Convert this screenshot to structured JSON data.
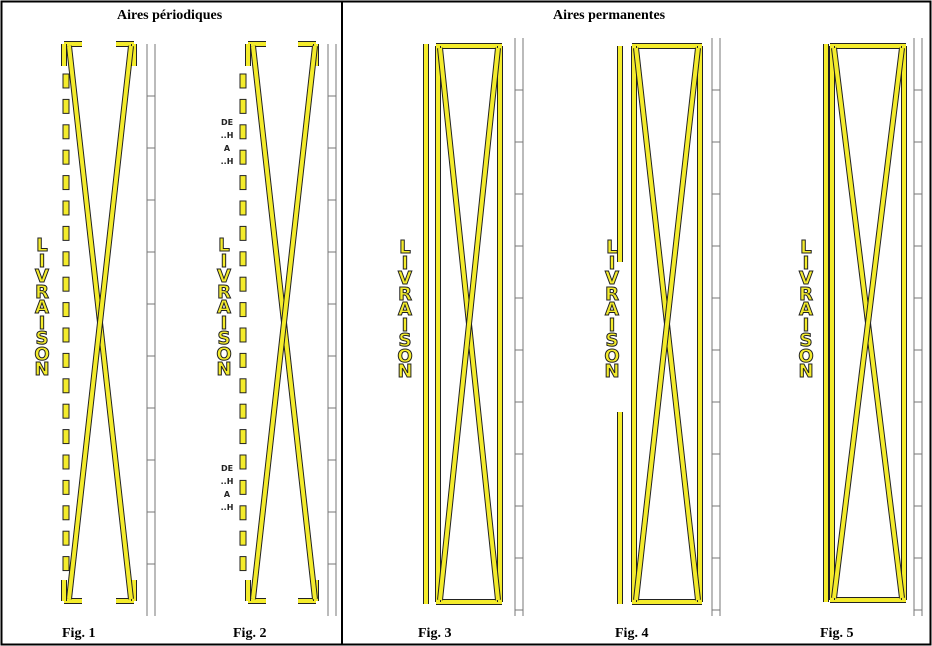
{
  "sections": {
    "periodic": {
      "title": "Aires périodiques"
    },
    "permanent": {
      "title": "Aires permanentes"
    }
  },
  "figures": [
    {
      "label": "Fig. 1",
      "text": "LIVRAISON"
    },
    {
      "label": "Fig. 2",
      "text": "LIVRAISON",
      "time_signs": [
        [
          "DE",
          "..H",
          "A",
          "..H"
        ],
        [
          "DE",
          "..H",
          "A",
          "..H"
        ]
      ]
    },
    {
      "label": "Fig. 3",
      "text": "LIVRAISON"
    },
    {
      "label": "Fig. 4",
      "text": "LIVRAISON"
    },
    {
      "label": "Fig. 5",
      "text": "LIVRAISON"
    }
  ],
  "colors": {
    "marking": "#f4ec2c",
    "outline": "#222222",
    "frame": "#000000",
    "curb": "#777777"
  }
}
